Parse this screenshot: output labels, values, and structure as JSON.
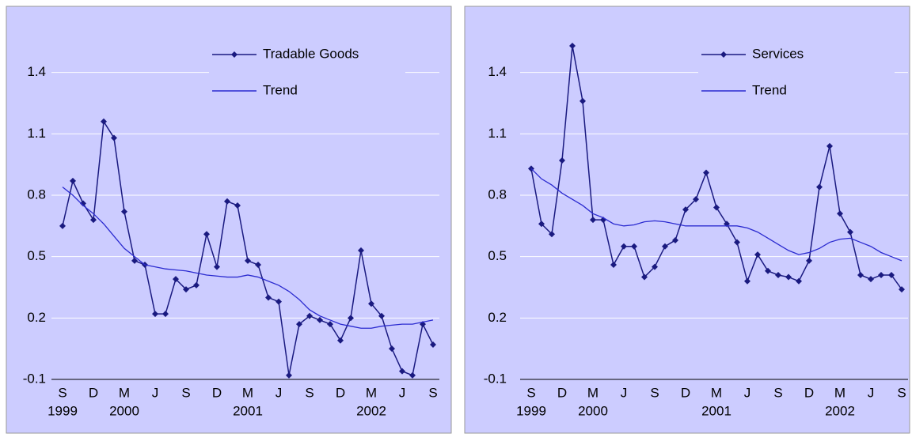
{
  "chart_data": [
    {
      "type": "line",
      "categories": [
        "S",
        null,
        null,
        "D",
        null,
        null,
        "M",
        null,
        null,
        "J",
        null,
        null,
        "S",
        null,
        null,
        "D",
        null,
        null,
        "M",
        null,
        null,
        "J",
        null,
        null,
        "S",
        null,
        null,
        "D",
        null,
        null,
        "M",
        null,
        null,
        "J",
        null,
        null,
        "S"
      ],
      "category_years": [
        "1999",
        null,
        null,
        null,
        null,
        null,
        "2000",
        null,
        null,
        null,
        null,
        null,
        null,
        null,
        null,
        null,
        null,
        null,
        "2001",
        null,
        null,
        null,
        null,
        null,
        null,
        null,
        null,
        null,
        null,
        null,
        "2002",
        null,
        null,
        null,
        null,
        null,
        null
      ],
      "series": [
        {
          "name": "Tradable Goods",
          "color": "#1a1a80",
          "marker": "diamond",
          "values": [
            0.65,
            0.87,
            0.76,
            0.68,
            1.16,
            1.08,
            0.72,
            0.48,
            0.46,
            0.22,
            0.22,
            0.39,
            0.34,
            0.36,
            0.61,
            0.45,
            0.77,
            0.75,
            0.48,
            0.46,
            0.3,
            0.28,
            -0.08,
            0.17,
            0.21,
            0.19,
            0.17,
            0.09,
            0.2,
            0.53,
            0.27,
            0.21,
            0.05,
            -0.06,
            -0.08,
            0.17,
            0.07
          ]
        },
        {
          "name": "Trend",
          "color": "#2b2bd0",
          "values": [
            0.84,
            0.8,
            0.75,
            0.71,
            0.66,
            0.6,
            0.54,
            0.5,
            0.46,
            0.45,
            0.44,
            0.435,
            0.43,
            0.42,
            0.41,
            0.405,
            0.4,
            0.4,
            0.41,
            0.4,
            0.38,
            0.36,
            0.33,
            0.29,
            0.24,
            0.21,
            0.19,
            0.17,
            0.16,
            0.15,
            0.15,
            0.16,
            0.165,
            0.17,
            0.17,
            0.18,
            0.19
          ]
        }
      ],
      "ylim": [
        -0.1,
        1.7
      ],
      "yticks": [
        -0.1,
        0.2,
        0.5,
        0.8,
        1.1,
        1.4
      ],
      "grid": true
    },
    {
      "type": "line",
      "categories": [
        "S",
        null,
        null,
        "D",
        null,
        null,
        "M",
        null,
        null,
        "J",
        null,
        null,
        "S",
        null,
        null,
        "D",
        null,
        null,
        "M",
        null,
        null,
        "J",
        null,
        null,
        "S",
        null,
        null,
        "D",
        null,
        null,
        "M",
        null,
        null,
        "J",
        null,
        null,
        "S"
      ],
      "category_years": [
        "1999",
        null,
        null,
        null,
        null,
        null,
        "2000",
        null,
        null,
        null,
        null,
        null,
        null,
        null,
        null,
        null,
        null,
        null,
        "2001",
        null,
        null,
        null,
        null,
        null,
        null,
        null,
        null,
        null,
        null,
        null,
        "2002",
        null,
        null,
        null,
        null,
        null,
        null
      ],
      "series": [
        {
          "name": "Services",
          "color": "#1a1a80",
          "marker": "diamond",
          "values": [
            0.93,
            0.66,
            0.61,
            0.97,
            1.53,
            1.26,
            0.68,
            0.68,
            0.46,
            0.55,
            0.55,
            0.4,
            0.45,
            0.55,
            0.58,
            0.73,
            0.78,
            0.91,
            0.74,
            0.66,
            0.57,
            0.38,
            0.51,
            0.43,
            0.41,
            0.4,
            0.38,
            0.48,
            0.84,
            1.04,
            0.71,
            0.62,
            0.41,
            0.39,
            0.41,
            0.41,
            0.34
          ]
        },
        {
          "name": "Trend",
          "color": "#2b2bd0",
          "values": [
            0.93,
            0.88,
            0.85,
            0.81,
            0.78,
            0.75,
            0.71,
            0.69,
            0.66,
            0.65,
            0.655,
            0.67,
            0.675,
            0.67,
            0.66,
            0.65,
            0.65,
            0.65,
            0.65,
            0.65,
            0.65,
            0.64,
            0.62,
            0.59,
            0.56,
            0.53,
            0.51,
            0.52,
            0.54,
            0.57,
            0.585,
            0.59,
            0.57,
            0.55,
            0.52,
            0.5,
            0.48
          ]
        }
      ],
      "ylim": [
        -0.1,
        1.7
      ],
      "yticks": [
        -0.1,
        0.2,
        0.5,
        0.8,
        1.1,
        1.4
      ],
      "grid": true
    }
  ]
}
